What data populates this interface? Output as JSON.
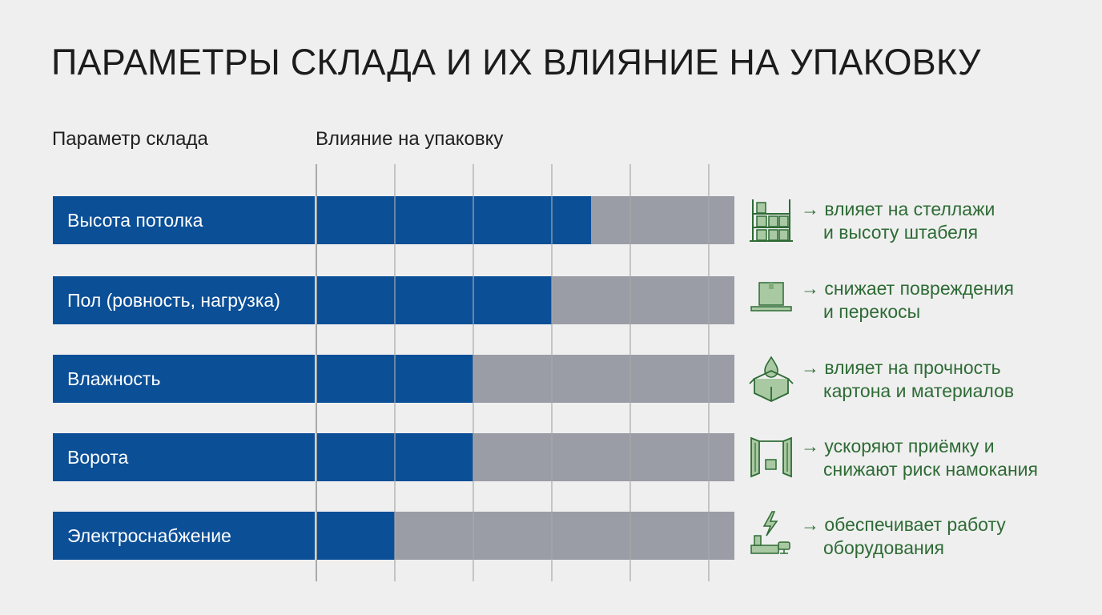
{
  "title": "ПАРАМЕТРЫ СКЛАДА И ИХ ВЛИЯНИЕ НА УПАКОВКУ",
  "headers": {
    "parameter": "Параметр склада",
    "impact": "Влияние на упаковку"
  },
  "colors": {
    "bar_fill": "#0b4f97",
    "bar_track": "#9a9ca6",
    "grid": "#a9a9a9",
    "impact_text": "#2e6b35",
    "background": "#efefef"
  },
  "chart_data": {
    "type": "bar",
    "orientation": "horizontal",
    "title": "ПАРАМЕТРЫ СКЛАДА И ИХ ВЛИЯНИЕ НА УПАКОВКУ",
    "xlabel": "Влияние на упаковку",
    "ylabel": "Параметр склада",
    "categories": [
      "Высота потолка",
      "Пол (ровность, нагрузка)",
      "Влажность",
      "Ворота",
      "Электроснабжение"
    ],
    "values": [
      3.5,
      3.0,
      2.0,
      2.0,
      1.0
    ],
    "xlim": [
      0,
      5.3
    ],
    "grid": true,
    "gridlines": [
      0,
      1,
      2,
      3,
      4,
      5
    ]
  },
  "rows": [
    {
      "label": "Высота потолка",
      "icon": "shelving-rack-icon",
      "impact_line1": "→ влияет на стеллажи",
      "impact_line2": "и высоту штабеля"
    },
    {
      "label": "Пол (ровность, нагрузка)",
      "icon": "box-on-floor-icon",
      "impact_line1": "→ снижает повреждения",
      "impact_line2": "и перекосы"
    },
    {
      "label": "Влажность",
      "icon": "water-drop-box-icon",
      "impact_line1": "→ влияет на прочность",
      "impact_line2": "картона и материалов"
    },
    {
      "label": "Ворота",
      "icon": "gate-icon",
      "impact_line1": "→ ускоряют приёмку и",
      "impact_line2": "снижают риск намокания"
    },
    {
      "label": "Электроснабжение",
      "icon": "power-equipment-icon",
      "impact_line1": "→ обеспечивает работу",
      "impact_line2": "оборудования"
    }
  ]
}
